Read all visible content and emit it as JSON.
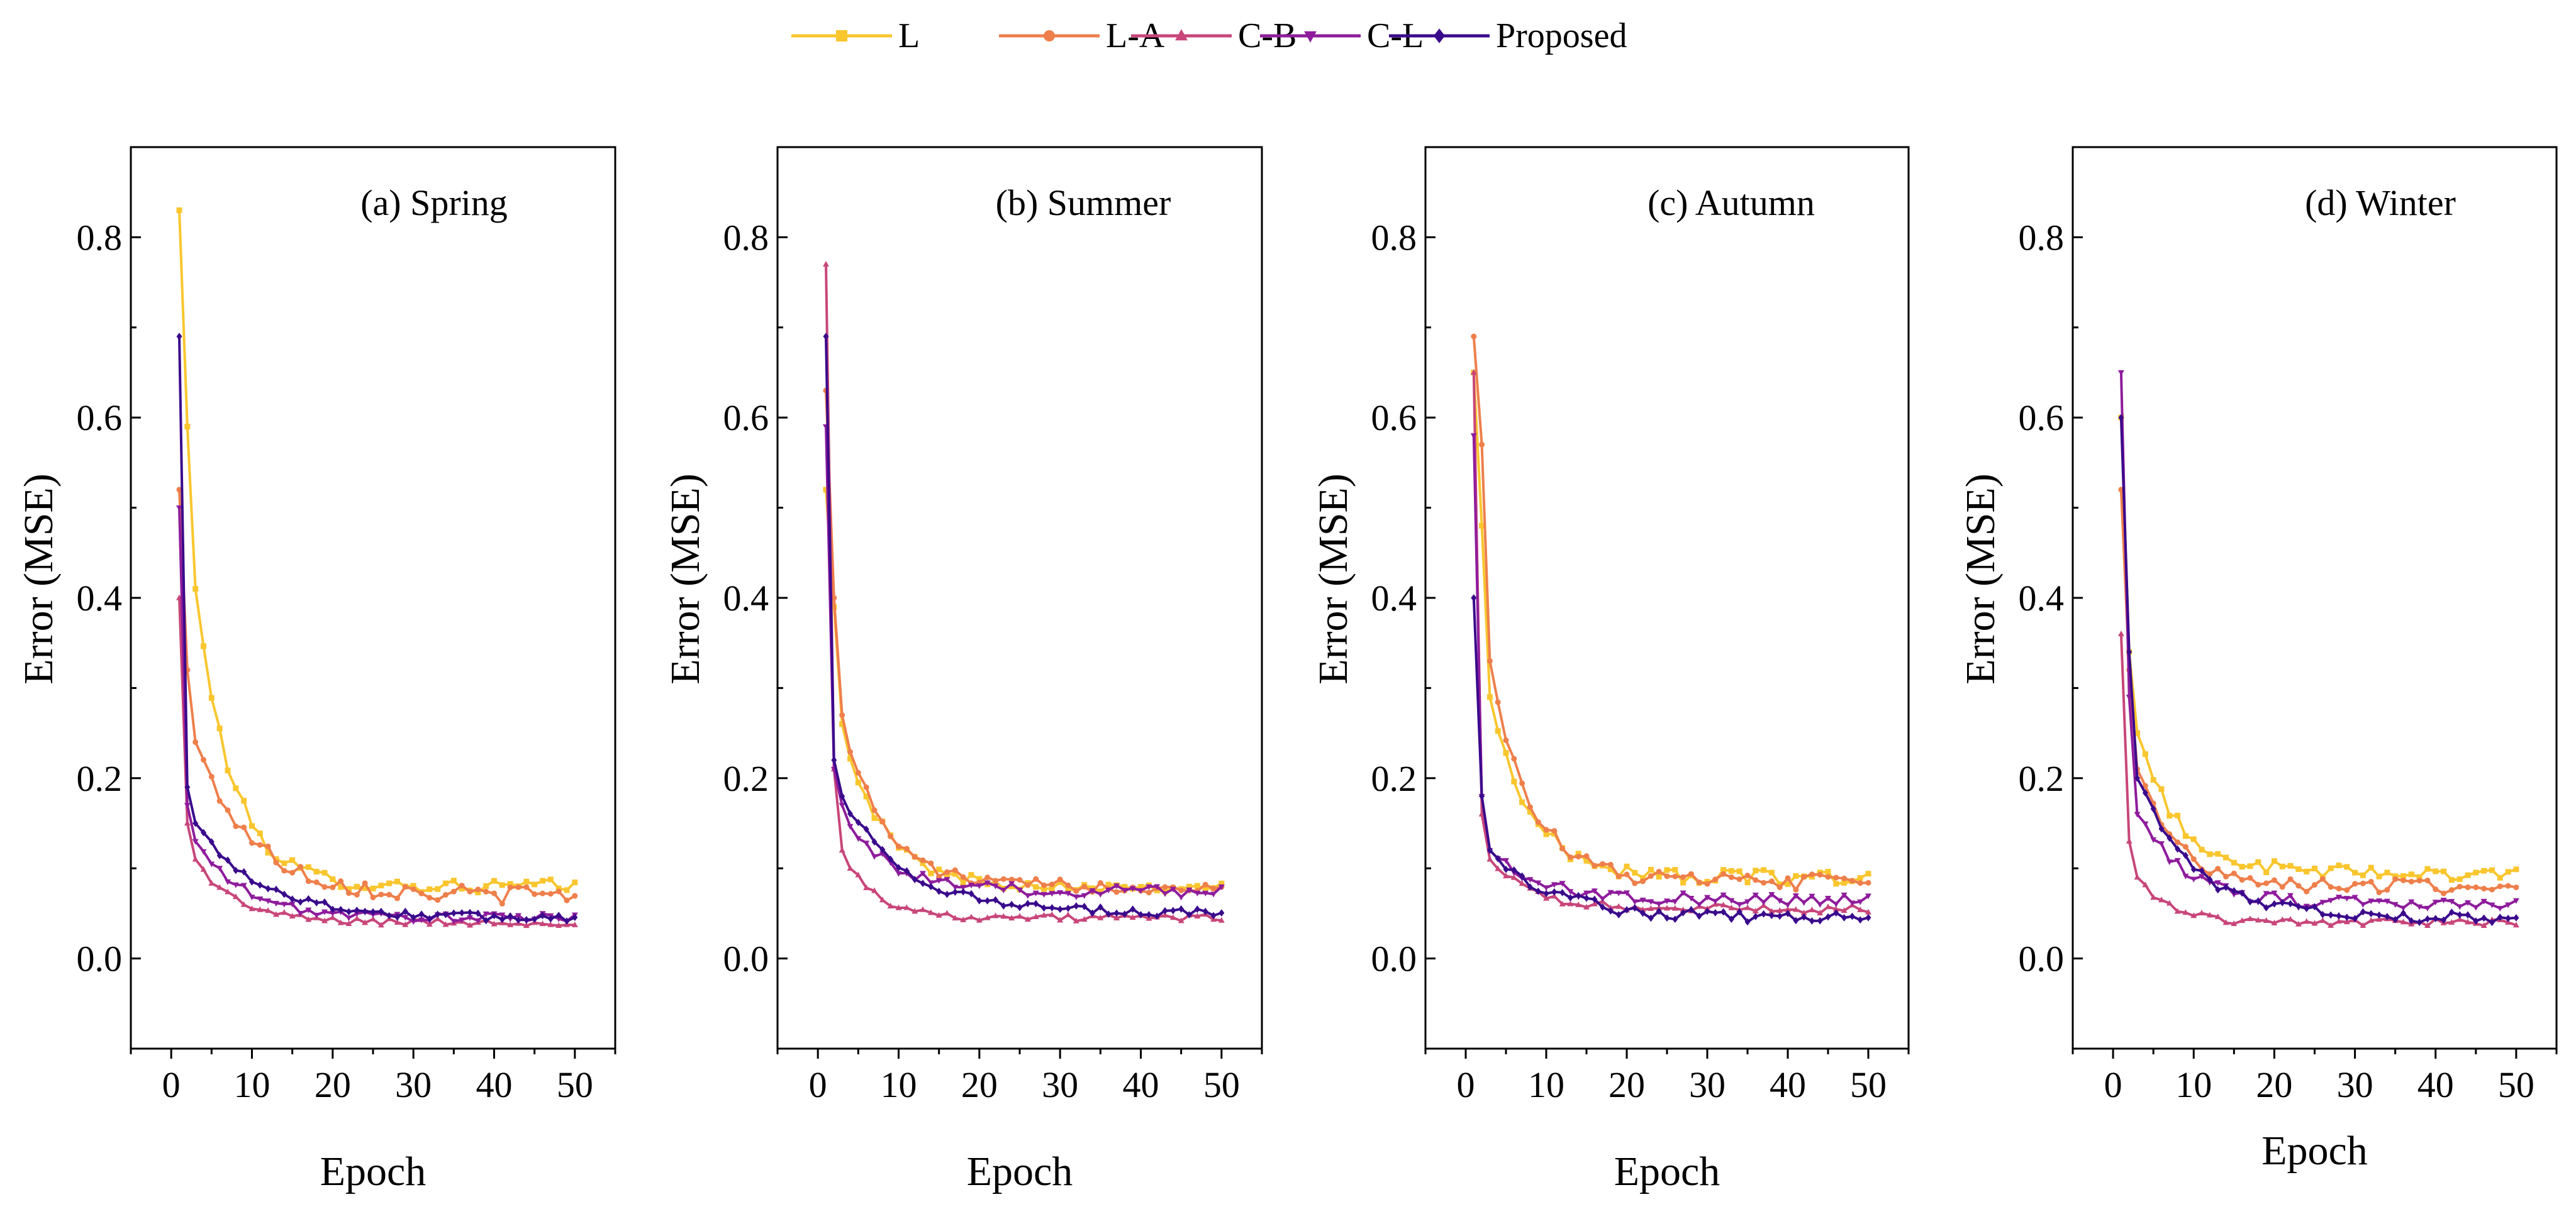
{
  "legend": {
    "items": [
      {
        "label": "L",
        "color": "#F9C62E",
        "marker": "square"
      },
      {
        "label": "L-A",
        "color": "#EE7F4B",
        "marker": "circle"
      },
      {
        "label": "C-B",
        "color": "#C8467A",
        "marker": "triangle-up"
      },
      {
        "label": "C-L",
        "color": "#8E1C9C",
        "marker": "triangle-down"
      },
      {
        "label": "Proposed",
        "color": "#3A0A8C",
        "marker": "diamond"
      }
    ]
  },
  "chart_data": [
    {
      "type": "line",
      "title": "(a) Spring",
      "xlabel": "Epoch",
      "ylabel": "Error (MSE)",
      "xlim": [
        -5,
        55
      ],
      "ylim": [
        -0.1,
        0.9
      ],
      "xticks": [
        0,
        10,
        20,
        30,
        40,
        50
      ],
      "yticks": [
        0.0,
        0.2,
        0.4,
        0.6,
        0.8
      ],
      "xtick_labels": [
        "0",
        "10",
        "20",
        "30",
        "40",
        "50"
      ],
      "ytick_labels": [
        "0.0",
        "0.2",
        "0.4",
        "0.6",
        "0.8"
      ],
      "grid": false,
      "series": [
        {
          "name": "L",
          "start": 0.83,
          "second": 0.59,
          "third": 0.41,
          "end": 0.08,
          "decay": 4.5,
          "noise": 0.008
        },
        {
          "name": "L-A",
          "start": 0.52,
          "second": 0.32,
          "third": 0.24,
          "end": 0.07,
          "decay": 7,
          "noise": 0.01
        },
        {
          "name": "C-B",
          "start": 0.4,
          "second": 0.15,
          "third": 0.11,
          "end": 0.04,
          "decay": 5,
          "noise": 0.004
        },
        {
          "name": "C-L",
          "start": 0.5,
          "second": 0.17,
          "third": 0.13,
          "end": 0.045,
          "decay": 6,
          "noise": 0.005
        },
        {
          "name": "Proposed",
          "start": 0.69,
          "second": 0.19,
          "third": 0.15,
          "end": 0.045,
          "decay": 8,
          "noise": 0.005
        }
      ]
    },
    {
      "type": "line",
      "title": "(b) Summer",
      "xlabel": "Epoch",
      "ylabel": "Error (MSE)",
      "xlim": [
        -5,
        55
      ],
      "ylim": [
        -0.1,
        0.9
      ],
      "xticks": [
        0,
        10,
        20,
        30,
        40,
        50
      ],
      "yticks": [
        0.0,
        0.2,
        0.4,
        0.6,
        0.8
      ],
      "xtick_labels": [
        "0",
        "10",
        "20",
        "30",
        "40",
        "50"
      ],
      "ytick_labels": [
        "0.0",
        "0.2",
        "0.4",
        "0.6",
        "0.8"
      ],
      "grid": false,
      "series": [
        {
          "name": "L",
          "start": 0.52,
          "second": 0.39,
          "third": 0.26,
          "end": 0.08,
          "decay": 5,
          "noise": 0.006
        },
        {
          "name": "L-A",
          "start": 0.63,
          "second": 0.4,
          "third": 0.27,
          "end": 0.08,
          "decay": 5,
          "noise": 0.007
        },
        {
          "name": "C-B",
          "start": 0.77,
          "second": 0.21,
          "third": 0.12,
          "end": 0.045,
          "decay": 4,
          "noise": 0.004
        },
        {
          "name": "C-L",
          "start": 0.59,
          "second": 0.21,
          "third": 0.17,
          "end": 0.075,
          "decay": 5,
          "noise": 0.007
        },
        {
          "name": "Proposed",
          "start": 0.69,
          "second": 0.22,
          "third": 0.18,
          "end": 0.05,
          "decay": 8,
          "noise": 0.005
        }
      ]
    },
    {
      "type": "line",
      "title": "(c) Autumn",
      "xlabel": "Epoch",
      "ylabel": "Error (MSE)",
      "xlim": [
        -5,
        55
      ],
      "ylim": [
        -0.1,
        0.9
      ],
      "xticks": [
        0,
        10,
        20,
        30,
        40,
        50
      ],
      "yticks": [
        0.0,
        0.2,
        0.4,
        0.6,
        0.8
      ],
      "xtick_labels": [
        "0",
        "10",
        "20",
        "30",
        "40",
        "50"
      ],
      "ytick_labels": [
        "0.0",
        "0.2",
        "0.4",
        "0.6",
        "0.8"
      ],
      "grid": false,
      "series": [
        {
          "name": "L",
          "start": 0.65,
          "second": 0.48,
          "third": 0.29,
          "end": 0.09,
          "decay": 5,
          "noise": 0.008
        },
        {
          "name": "L-A",
          "start": 0.69,
          "second": 0.57,
          "third": 0.33,
          "end": 0.085,
          "decay": 5,
          "noise": 0.009
        },
        {
          "name": "C-B",
          "start": 0.65,
          "second": 0.16,
          "third": 0.11,
          "end": 0.055,
          "decay": 5,
          "noise": 0.005
        },
        {
          "name": "C-L",
          "start": 0.58,
          "second": 0.18,
          "third": 0.12,
          "end": 0.065,
          "decay": 6,
          "noise": 0.007
        },
        {
          "name": "Proposed",
          "start": 0.4,
          "second": 0.18,
          "third": 0.12,
          "end": 0.045,
          "decay": 8,
          "noise": 0.007
        }
      ]
    },
    {
      "type": "line",
      "title": "(d) Winter",
      "xlabel": "Epoch",
      "ylabel": "Error (MSE)",
      "xlim": [
        -5,
        55
      ],
      "ylim": [
        -0.1,
        0.9
      ],
      "xticks": [
        0,
        10,
        20,
        30,
        40,
        50
      ],
      "yticks": [
        0.0,
        0.2,
        0.4,
        0.6,
        0.8
      ],
      "xtick_labels": [
        "0",
        "10",
        "20",
        "30",
        "40",
        "50"
      ],
      "ytick_labels": [
        "0.0",
        "0.2",
        "0.4",
        "0.6",
        "0.8"
      ],
      "grid": false,
      "series": [
        {
          "name": "L",
          "start": 0.6,
          "second": 0.34,
          "third": 0.25,
          "end": 0.095,
          "decay": 5,
          "noise": 0.008
        },
        {
          "name": "L-A",
          "start": 0.52,
          "second": 0.32,
          "third": 0.21,
          "end": 0.08,
          "decay": 5,
          "noise": 0.008
        },
        {
          "name": "C-B",
          "start": 0.36,
          "second": 0.13,
          "third": 0.09,
          "end": 0.04,
          "decay": 4,
          "noise": 0.004
        },
        {
          "name": "C-L",
          "start": 0.65,
          "second": 0.29,
          "third": 0.16,
          "end": 0.06,
          "decay": 6,
          "noise": 0.007
        },
        {
          "name": "Proposed",
          "start": 0.6,
          "second": 0.34,
          "third": 0.2,
          "end": 0.045,
          "decay": 7,
          "noise": 0.006
        }
      ]
    }
  ]
}
